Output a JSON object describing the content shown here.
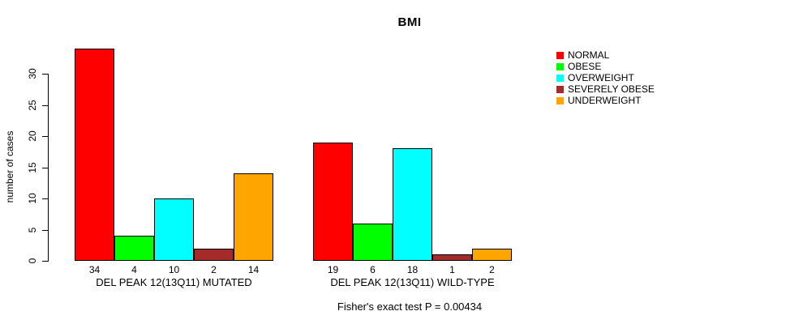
{
  "chart_data": {
    "type": "bar",
    "title": "BMI",
    "ylabel": "number of cases",
    "ylim": [
      0,
      30
    ],
    "yticks": [
      0,
      5,
      10,
      15,
      20,
      25,
      30
    ],
    "grid": false,
    "legend_position": "top-right",
    "bar_value_labels": true,
    "categories": [
      "DEL PEAK 12(13Q11) MUTATED",
      "DEL PEAK 12(13Q11) WILD-TYPE"
    ],
    "series": [
      {
        "name": "NORMAL",
        "color": "#FF0000",
        "values": [
          34,
          19
        ]
      },
      {
        "name": "OBESE",
        "color": "#00FF00",
        "values": [
          4,
          6
        ]
      },
      {
        "name": "OVERWEIGHT",
        "color": "#00FFFF",
        "values": [
          10,
          18
        ]
      },
      {
        "name": "SEVERELY OBESE",
        "color": "#A52A2A",
        "values": [
          2,
          1
        ]
      },
      {
        "name": "UNDERWEIGHT",
        "color": "#FFA500",
        "values": [
          14,
          2
        ]
      }
    ],
    "annotation": "Fisher's exact test P = 0.00434"
  }
}
